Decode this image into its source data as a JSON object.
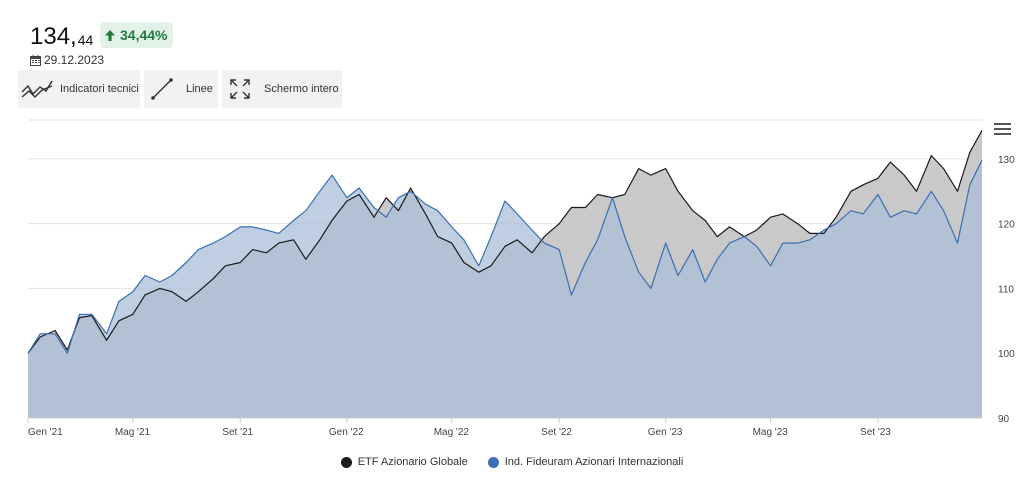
{
  "header": {
    "price_int": "134,",
    "price_dec": "44",
    "change": "34,44%",
    "date": "29.12.2023"
  },
  "toolbar": {
    "technical_label": "Indicatori tecnici",
    "lines_label": "Linee",
    "fullscreen_label": "Schermo intero"
  },
  "colors": {
    "series1_line": "#1a1a1a",
    "series1_fill": "#c9c9c9",
    "series2_line": "#3b6fb4",
    "series2_fill": "#a9bdd6",
    "positive": "#1f7a3c"
  },
  "chart_data": {
    "type": "area",
    "title": "",
    "xlabel": "",
    "ylabel": "",
    "ylim": [
      90,
      136
    ],
    "grid": true,
    "legend_position": "bottom",
    "x_tick_labels": [
      "Gen '21",
      "Mag '21",
      "Set '21",
      "Gen '22",
      "Mag '22",
      "Set '22",
      "Gen '23",
      "Mag '23",
      "Set '23"
    ],
    "y_ticks": [
      90,
      100,
      110,
      120,
      130
    ],
    "x_start": "2021-01-01",
    "x_end": "2023-12-29",
    "series": [
      {
        "name": "ETF Azionario Globale",
        "points": [
          [
            "2021-01-01",
            100.0
          ],
          [
            "2021-01-15",
            102.5
          ],
          [
            "2021-02-01",
            103.5
          ],
          [
            "2021-02-15",
            100.5
          ],
          [
            "2021-03-01",
            105.5
          ],
          [
            "2021-03-15",
            105.8
          ],
          [
            "2021-04-01",
            102.0
          ],
          [
            "2021-04-15",
            105.0
          ],
          [
            "2021-05-01",
            106.0
          ],
          [
            "2021-05-15",
            109.0
          ],
          [
            "2021-06-01",
            110.0
          ],
          [
            "2021-06-15",
            109.5
          ],
          [
            "2021-07-01",
            108.0
          ],
          [
            "2021-07-15",
            109.5
          ],
          [
            "2021-08-01",
            111.5
          ],
          [
            "2021-08-15",
            113.5
          ],
          [
            "2021-09-01",
            114.0
          ],
          [
            "2021-09-15",
            116.0
          ],
          [
            "2021-10-01",
            115.5
          ],
          [
            "2021-10-15",
            117.0
          ],
          [
            "2021-11-01",
            117.5
          ],
          [
            "2021-11-15",
            114.5
          ],
          [
            "2021-12-01",
            117.5
          ],
          [
            "2021-12-15",
            120.5
          ],
          [
            "2022-01-01",
            123.5
          ],
          [
            "2022-01-15",
            124.5
          ],
          [
            "2022-02-01",
            121.0
          ],
          [
            "2022-02-15",
            124.0
          ],
          [
            "2022-03-01",
            122.0
          ],
          [
            "2022-03-15",
            125.5
          ],
          [
            "2022-04-01",
            121.5
          ],
          [
            "2022-04-15",
            118.0
          ],
          [
            "2022-05-01",
            117.0
          ],
          [
            "2022-05-15",
            114.0
          ],
          [
            "2022-06-01",
            112.5
          ],
          [
            "2022-06-15",
            113.5
          ],
          [
            "2022-07-01",
            116.5
          ],
          [
            "2022-07-15",
            117.5
          ],
          [
            "2022-08-01",
            115.5
          ],
          [
            "2022-08-15",
            118.0
          ],
          [
            "2022-09-01",
            120.0
          ],
          [
            "2022-09-15",
            122.5
          ],
          [
            "2022-10-01",
            122.5
          ],
          [
            "2022-10-15",
            124.5
          ],
          [
            "2022-11-01",
            124.0
          ],
          [
            "2022-11-15",
            124.5
          ],
          [
            "2022-12-01",
            128.5
          ],
          [
            "2022-12-15",
            127.5
          ],
          [
            "2023-01-01",
            128.5
          ],
          [
            "2023-01-15",
            125.0
          ],
          [
            "2023-02-01",
            122.0
          ],
          [
            "2023-02-15",
            120.5
          ],
          [
            "2023-03-01",
            118.0
          ],
          [
            "2023-03-15",
            119.5
          ],
          [
            "2023-04-01",
            118.0
          ],
          [
            "2023-04-15",
            119.0
          ],
          [
            "2023-05-01",
            121.0
          ],
          [
            "2023-05-15",
            121.5
          ],
          [
            "2023-06-01",
            120.0
          ],
          [
            "2023-06-15",
            118.5
          ],
          [
            "2023-07-01",
            118.5
          ],
          [
            "2023-07-15",
            121.0
          ],
          [
            "2023-08-01",
            125.0
          ],
          [
            "2023-08-15",
            126.0
          ],
          [
            "2023-09-01",
            127.0
          ],
          [
            "2023-09-15",
            129.5
          ],
          [
            "2023-10-01",
            127.5
          ],
          [
            "2023-10-15",
            125.0
          ],
          [
            "2023-11-01",
            130.5
          ],
          [
            "2023-11-15",
            128.5
          ],
          [
            "2023-12-01",
            125.0
          ],
          [
            "2023-12-15",
            131.0
          ],
          [
            "2023-12-29",
            134.4
          ]
        ]
      },
      {
        "name": "Ind. Fideuram Azionari Internazionali",
        "points": [
          [
            "2021-01-01",
            100.0
          ],
          [
            "2021-01-15",
            103.0
          ],
          [
            "2021-02-01",
            103.0
          ],
          [
            "2021-02-15",
            100.0
          ],
          [
            "2021-03-01",
            106.0
          ],
          [
            "2021-03-15",
            106.0
          ],
          [
            "2021-04-01",
            103.0
          ],
          [
            "2021-04-15",
            108.0
          ],
          [
            "2021-05-01",
            109.5
          ],
          [
            "2021-05-15",
            112.0
          ],
          [
            "2021-06-01",
            111.0
          ],
          [
            "2021-06-15",
            112.0
          ],
          [
            "2021-07-01",
            114.0
          ],
          [
            "2021-07-15",
            116.0
          ],
          [
            "2021-08-01",
            117.0
          ],
          [
            "2021-08-15",
            118.0
          ],
          [
            "2021-09-01",
            119.5
          ],
          [
            "2021-09-15",
            119.5
          ],
          [
            "2021-10-01",
            119.0
          ],
          [
            "2021-10-15",
            118.5
          ],
          [
            "2021-11-01",
            120.5
          ],
          [
            "2021-11-15",
            122.0
          ],
          [
            "2021-12-01",
            125.0
          ],
          [
            "2021-12-15",
            127.5
          ],
          [
            "2022-01-01",
            124.0
          ],
          [
            "2022-01-15",
            125.5
          ],
          [
            "2022-02-01",
            122.5
          ],
          [
            "2022-02-15",
            121.0
          ],
          [
            "2022-03-01",
            124.0
          ],
          [
            "2022-03-15",
            125.0
          ],
          [
            "2022-04-01",
            123.0
          ],
          [
            "2022-04-15",
            122.0
          ],
          [
            "2022-05-01",
            119.5
          ],
          [
            "2022-05-15",
            117.5
          ],
          [
            "2022-06-01",
            113.5
          ],
          [
            "2022-06-15",
            118.0
          ],
          [
            "2022-07-01",
            123.5
          ],
          [
            "2022-07-15",
            121.5
          ],
          [
            "2022-08-01",
            119.0
          ],
          [
            "2022-08-15",
            117.0
          ],
          [
            "2022-09-01",
            116.0
          ],
          [
            "2022-09-15",
            109.0
          ],
          [
            "2022-10-01",
            114.0
          ],
          [
            "2022-10-15",
            117.5
          ],
          [
            "2022-11-01",
            124.0
          ],
          [
            "2022-11-15",
            118.0
          ],
          [
            "2022-12-01",
            112.5
          ],
          [
            "2022-12-15",
            110.0
          ],
          [
            "2023-01-01",
            117.0
          ],
          [
            "2023-01-15",
            112.0
          ],
          [
            "2023-02-01",
            116.0
          ],
          [
            "2023-02-15",
            111.0
          ],
          [
            "2023-03-01",
            114.5
          ],
          [
            "2023-03-15",
            117.0
          ],
          [
            "2023-04-01",
            118.0
          ],
          [
            "2023-04-15",
            116.5
          ],
          [
            "2023-05-01",
            113.5
          ],
          [
            "2023-05-15",
            117.0
          ],
          [
            "2023-06-01",
            117.0
          ],
          [
            "2023-06-15",
            117.5
          ],
          [
            "2023-07-01",
            119.0
          ],
          [
            "2023-07-15",
            120.0
          ],
          [
            "2023-08-01",
            122.0
          ],
          [
            "2023-08-15",
            121.5
          ],
          [
            "2023-09-01",
            124.5
          ],
          [
            "2023-09-15",
            121.0
          ],
          [
            "2023-10-01",
            122.0
          ],
          [
            "2023-10-15",
            121.5
          ],
          [
            "2023-11-01",
            125.0
          ],
          [
            "2023-11-15",
            122.0
          ],
          [
            "2023-12-01",
            117.0
          ],
          [
            "2023-12-15",
            126.0
          ],
          [
            "2023-12-29",
            129.8
          ]
        ]
      }
    ]
  }
}
